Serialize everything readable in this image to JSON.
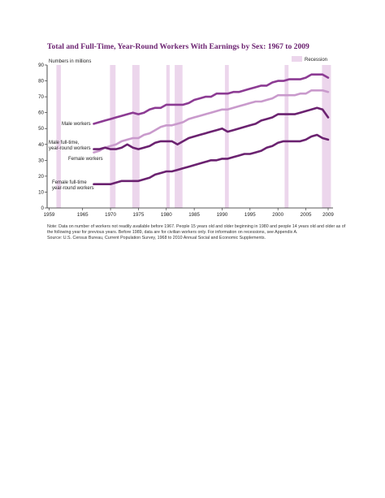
{
  "chart_data": {
    "type": "line",
    "title": "Total and Full-Time, Year-Round Workers With Earnings by Sex: 1967 to 2009",
    "ylabel": "Numbers in millions",
    "ylim": [
      0,
      90
    ],
    "yticks": [
      0,
      10,
      20,
      30,
      40,
      50,
      60,
      70,
      80,
      90
    ],
    "xlim": [
      1959,
      2009
    ],
    "xticks": [
      1959,
      1965,
      1970,
      1975,
      1980,
      1985,
      1990,
      1995,
      2000,
      2005,
      2009
    ],
    "grid": false,
    "legend": {
      "label": "Recession",
      "placement": "top-right"
    },
    "recessions": [
      [
        1960.3,
        1961.1
      ],
      [
        1969.9,
        1970.9
      ],
      [
        1973.9,
        1975.2
      ],
      [
        1980.0,
        1980.6
      ],
      [
        1981.5,
        1982.9
      ],
      [
        1990.5,
        1991.2
      ],
      [
        2001.2,
        2001.9
      ],
      [
        2007.9,
        2009.5
      ]
    ],
    "series": [
      {
        "name": "Male workers",
        "color": "#8c3b93",
        "x": [
          1967,
          1968,
          1969,
          1970,
          1971,
          1972,
          1973,
          1974,
          1975,
          1976,
          1977,
          1978,
          1979,
          1980,
          1981,
          1982,
          1983,
          1984,
          1985,
          1986,
          1987,
          1988,
          1989,
          1990,
          1991,
          1992,
          1993,
          1994,
          1995,
          1996,
          1997,
          1998,
          1999,
          2000,
          2001,
          2002,
          2003,
          2004,
          2005,
          2006,
          2007,
          2008,
          2009
        ],
        "values": [
          53,
          54,
          55,
          56,
          57,
          58,
          59,
          60,
          59,
          60,
          62,
          63,
          63,
          65,
          65,
          65,
          65,
          66,
          68,
          69,
          70,
          70,
          72,
          72,
          72,
          73,
          73,
          74,
          75,
          76,
          77,
          77,
          79,
          80,
          80,
          81,
          81,
          81,
          82,
          84,
          84,
          84,
          82
        ]
      },
      {
        "name": "Female workers",
        "color": "#c99acc",
        "x": [
          1967,
          1968,
          1969,
          1970,
          1971,
          1972,
          1973,
          1974,
          1975,
          1976,
          1977,
          1978,
          1979,
          1980,
          1981,
          1982,
          1983,
          1984,
          1985,
          1986,
          1987,
          1988,
          1989,
          1990,
          1991,
          1992,
          1993,
          1994,
          1995,
          1996,
          1997,
          1998,
          1999,
          2000,
          2001,
          2002,
          2003,
          2004,
          2005,
          2006,
          2007,
          2008,
          2009
        ],
        "values": [
          35,
          36,
          38,
          39,
          40,
          42,
          43,
          44,
          44,
          46,
          47,
          49,
          51,
          52,
          52,
          53,
          54,
          56,
          57,
          58,
          59,
          60,
          61,
          62,
          62,
          63,
          64,
          65,
          66,
          67,
          67,
          68,
          69,
          71,
          71,
          71,
          71,
          72,
          72,
          74,
          74,
          74,
          73
        ]
      },
      {
        "name": "Male full-time, year-round workers",
        "color": "#6b2270",
        "x": [
          1967,
          1968,
          1969,
          1970,
          1971,
          1972,
          1973,
          1974,
          1975,
          1976,
          1977,
          1978,
          1979,
          1980,
          1981,
          1982,
          1983,
          1984,
          1985,
          1986,
          1987,
          1988,
          1989,
          1990,
          1991,
          1992,
          1993,
          1994,
          1995,
          1996,
          1997,
          1998,
          1999,
          2000,
          2001,
          2002,
          2003,
          2004,
          2005,
          2006,
          2007,
          2008,
          2009
        ],
        "values": [
          37,
          37,
          38,
          37,
          37,
          38,
          40,
          38,
          37,
          38,
          39,
          41,
          42,
          42,
          42,
          40,
          42,
          44,
          45,
          46,
          47,
          48,
          49,
          50,
          48,
          49,
          50,
          51,
          52,
          53,
          55,
          56,
          57,
          59,
          59,
          59,
          59,
          60,
          61,
          62,
          63,
          62,
          57
        ]
      },
      {
        "name": "Female full-time year-round workers",
        "color": "#6b2270",
        "x": [
          1967,
          1968,
          1969,
          1970,
          1971,
          1972,
          1973,
          1974,
          1975,
          1976,
          1977,
          1978,
          1979,
          1980,
          1981,
          1982,
          1983,
          1984,
          1985,
          1986,
          1987,
          1988,
          1989,
          1990,
          1991,
          1992,
          1993,
          1994,
          1995,
          1996,
          1997,
          1998,
          1999,
          2000,
          2001,
          2002,
          2003,
          2004,
          2005,
          2006,
          2007,
          2008,
          2009
        ],
        "values": [
          15,
          15,
          15,
          15,
          16,
          17,
          17,
          17,
          17,
          18,
          19,
          21,
          22,
          23,
          23,
          24,
          25,
          26,
          27,
          28,
          29,
          30,
          30,
          31,
          31,
          32,
          33,
          34,
          34,
          35,
          36,
          38,
          39,
          41,
          42,
          42,
          42,
          42,
          43,
          45,
          46,
          44,
          43
        ]
      }
    ],
    "notes": [
      "Note: Data on number of workers not readily available before 1967. People 15 years old and older beginning in 1980 and people 14 years old and older as of the following year for previous years. Before 1989, data are for civilian workers only. For information on recessions, see Appendix A.",
      "Source:  U.S. Census Bureau, Current Population Survey, 1968 to 2010 Annual Social and Economic Supplements."
    ]
  }
}
